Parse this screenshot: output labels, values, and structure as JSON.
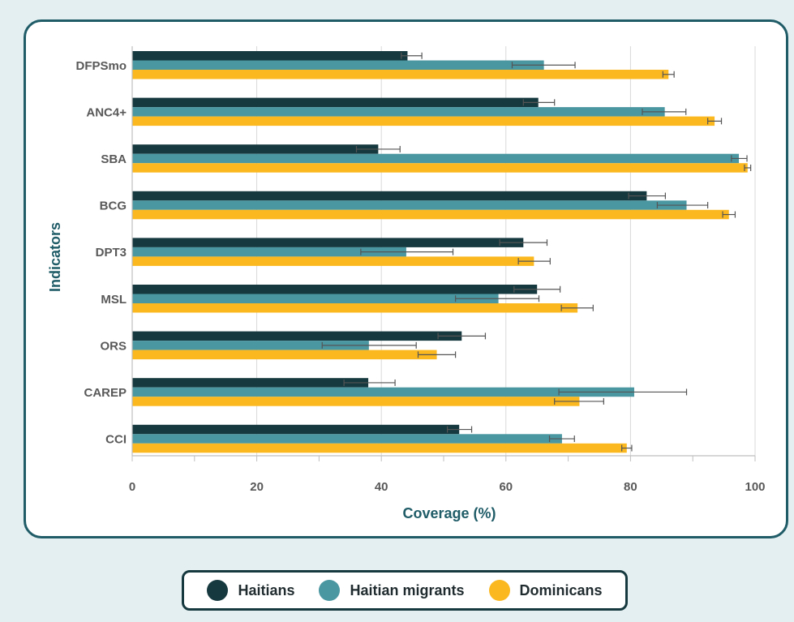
{
  "chart_data": {
    "type": "bar",
    "orientation": "horizontal",
    "xlabel": "Coverage (%)",
    "ylabel": "Indicators",
    "xlim": [
      0,
      100
    ],
    "xticks": [
      "0",
      "20",
      "40",
      "60",
      "80",
      "100"
    ],
    "grid": "vertical",
    "legend_position": "bottom",
    "categories": [
      "DFPSmo",
      "ANC4+",
      "SBA",
      "BCG",
      "DPT3",
      "MSL",
      "ORS",
      "CAREP",
      "CCI"
    ],
    "series": [
      {
        "name": "Haitians",
        "color": "#16393f",
        "values": [
          44.2,
          65.2,
          39.5,
          82.6,
          62.8,
          65.0,
          52.9,
          37.9,
          52.5
        ],
        "error_low": [
          43.2,
          62.8,
          36.0,
          79.7,
          59.0,
          61.3,
          49.1,
          34.0,
          50.6
        ],
        "error_high": [
          46.5,
          67.8,
          43.0,
          85.6,
          66.6,
          68.7,
          56.7,
          42.2,
          54.5
        ]
      },
      {
        "name": "Haitian migrants",
        "color": "#4a96a1",
        "values": [
          66.1,
          85.5,
          97.4,
          89.0,
          44.0,
          58.8,
          38.0,
          80.6,
          69.0
        ],
        "error_low": [
          61.0,
          81.9,
          96.2,
          84.3,
          36.7,
          51.9,
          30.5,
          68.5,
          67.0
        ],
        "error_high": [
          71.1,
          88.9,
          98.7,
          92.4,
          51.5,
          65.3,
          45.6,
          89.0,
          71.0
        ]
      },
      {
        "name": "Dominicans",
        "color": "#fbb81f",
        "values": [
          86.1,
          93.5,
          98.8,
          95.8,
          64.5,
          71.5,
          48.9,
          71.8,
          79.4
        ],
        "error_low": [
          85.2,
          92.4,
          98.3,
          94.8,
          62.0,
          68.9,
          45.9,
          67.8,
          78.6
        ],
        "error_high": [
          87.0,
          94.6,
          99.3,
          96.8,
          67.1,
          74.0,
          51.9,
          75.7,
          80.2
        ]
      }
    ]
  }
}
